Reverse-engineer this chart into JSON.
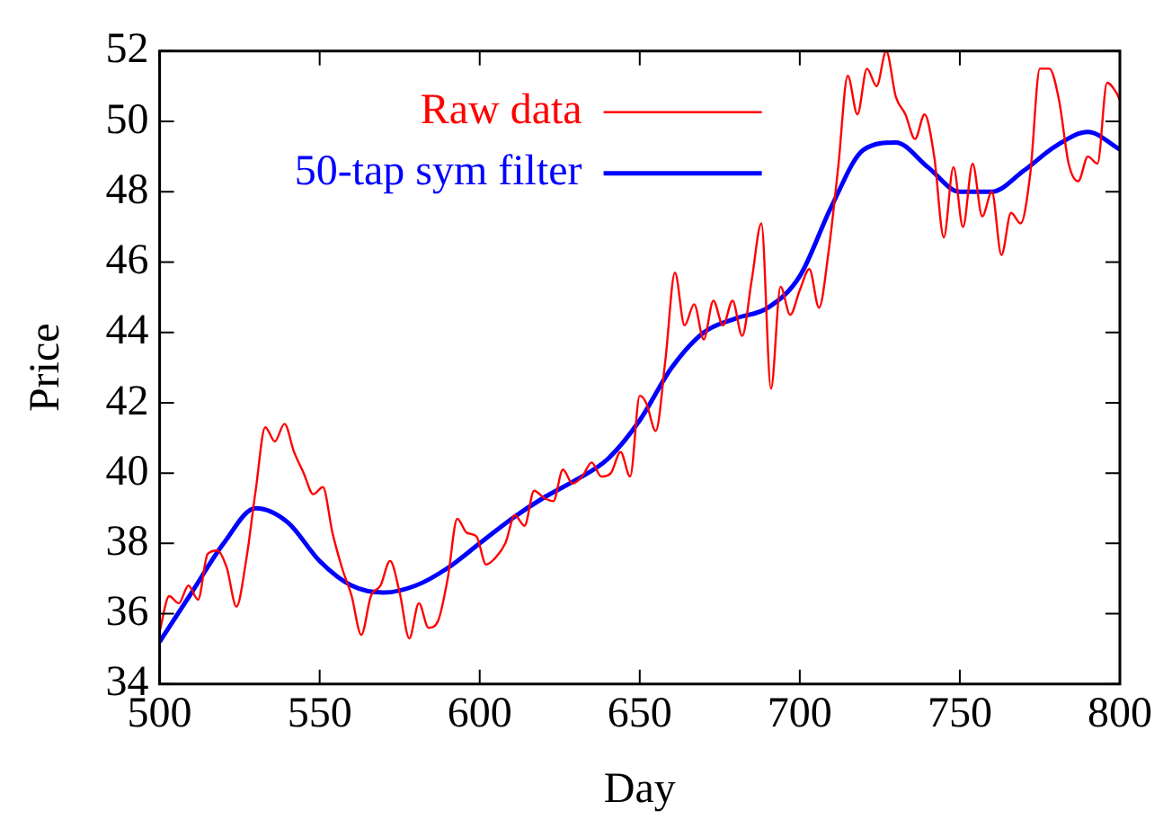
{
  "chart_data": {
    "type": "line",
    "xlabel": "Day",
    "ylabel": "Price",
    "xlim": [
      500,
      800
    ],
    "xticks": [
      500,
      550,
      600,
      650,
      700,
      750,
      800
    ],
    "ylim": [
      34,
      52
    ],
    "yticks": [
      34,
      36,
      38,
      40,
      42,
      44,
      46,
      48,
      50,
      52
    ],
    "grid": false,
    "legend": "top left",
    "marker": "none",
    "line_style": "solid",
    "series": [
      {
        "name": "Raw data",
        "color": "#ff0000",
        "x": [
          500,
          503,
          506,
          509,
          512,
          515,
          518,
          521,
          524,
          527,
          530,
          533,
          536,
          539,
          542,
          545,
          548,
          551,
          554,
          557,
          560,
          563,
          566,
          569,
          572,
          575,
          578,
          581,
          584,
          587,
          590,
          593,
          596,
          599,
          602,
          605,
          608,
          611,
          614,
          617,
          620,
          623,
          626,
          629,
          632,
          635,
          638,
          641,
          644,
          647,
          650,
          652,
          655,
          658,
          661,
          664,
          667,
          670,
          673,
          676,
          679,
          682,
          685,
          688,
          691,
          694,
          697,
          700,
          703,
          706,
          709,
          712,
          715,
          718,
          721,
          724,
          727,
          730,
          733,
          736,
          739,
          742,
          745,
          748,
          751,
          754,
          757,
          760,
          763,
          766,
          769,
          772,
          775,
          778,
          781,
          784,
          787,
          790,
          793,
          796,
          799,
          800
        ],
        "values": [
          35.5,
          36.5,
          36.3,
          36.8,
          36.4,
          37.7,
          37.8,
          37.3,
          36.2,
          37.5,
          39.5,
          41.3,
          40.9,
          41.4,
          40.6,
          40.0,
          39.4,
          39.6,
          38.3,
          37.3,
          36.5,
          35.4,
          36.5,
          36.8,
          37.5,
          36.6,
          35.3,
          36.3,
          35.6,
          35.8,
          37.0,
          38.7,
          38.3,
          38.2,
          37.4,
          37.6,
          38.0,
          38.8,
          38.5,
          39.5,
          39.3,
          39.2,
          40.1,
          39.7,
          39.9,
          40.3,
          39.9,
          40.0,
          40.6,
          39.9,
          42.2,
          42.0,
          41.2,
          43.2,
          45.7,
          44.2,
          44.8,
          43.8,
          44.9,
          44.2,
          44.9,
          43.9,
          45.5,
          47.1,
          42.4,
          45.3,
          44.5,
          45.2,
          45.8,
          44.7,
          46.3,
          48.7,
          51.3,
          50.2,
          51.5,
          51.0,
          52.0,
          50.7,
          50.2,
          49.5,
          50.2,
          49.0,
          46.7,
          48.7,
          47.0,
          48.8,
          47.3,
          48.0,
          46.2,
          47.4,
          47.1,
          48.5,
          51.5,
          51.5,
          50.6,
          48.8,
          48.3,
          49.0,
          48.8,
          51.1,
          50.8,
          50.6
        ]
      },
      {
        "name": "50-tap sym filter",
        "color": "#0000ff",
        "x": [
          500,
          510,
          520,
          530,
          540,
          550,
          560,
          570,
          580,
          590,
          600,
          610,
          620,
          630,
          640,
          650,
          660,
          670,
          680,
          690,
          700,
          710,
          720,
          730,
          740,
          750,
          760,
          770,
          780,
          790,
          800
        ],
        "values": [
          35.2,
          36.6,
          38.0,
          39.0,
          38.6,
          37.5,
          36.8,
          36.6,
          36.8,
          37.3,
          38.0,
          38.7,
          39.3,
          39.8,
          40.4,
          41.5,
          43.0,
          44.0,
          44.4,
          44.7,
          45.6,
          47.6,
          49.2,
          49.4,
          48.7,
          48.0,
          48.0,
          48.6,
          49.3,
          49.7,
          49.2
        ]
      }
    ]
  }
}
